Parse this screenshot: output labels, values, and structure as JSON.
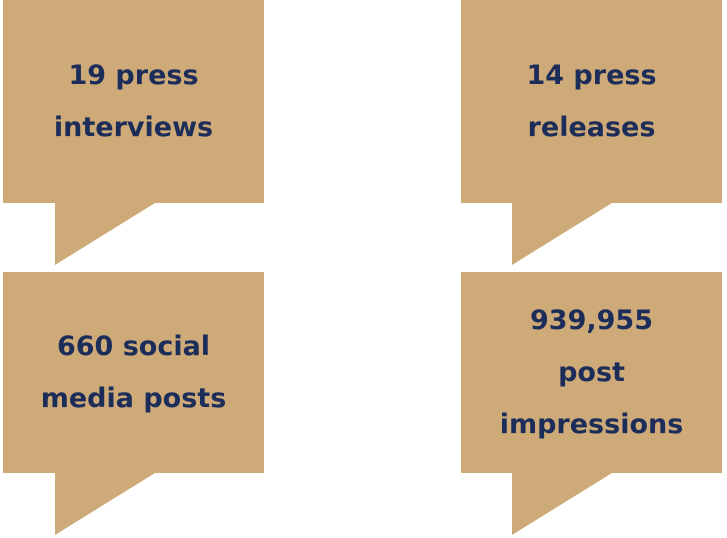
{
  "bubbles": [
    {
      "lines": [
        "19 press",
        "interviews"
      ]
    },
    {
      "lines": [
        "14 press",
        "releases"
      ]
    },
    {
      "lines": [
        "660 social",
        "media posts"
      ]
    },
    {
      "lines": [
        "939,955",
        "post",
        "impressions"
      ]
    }
  ]
}
